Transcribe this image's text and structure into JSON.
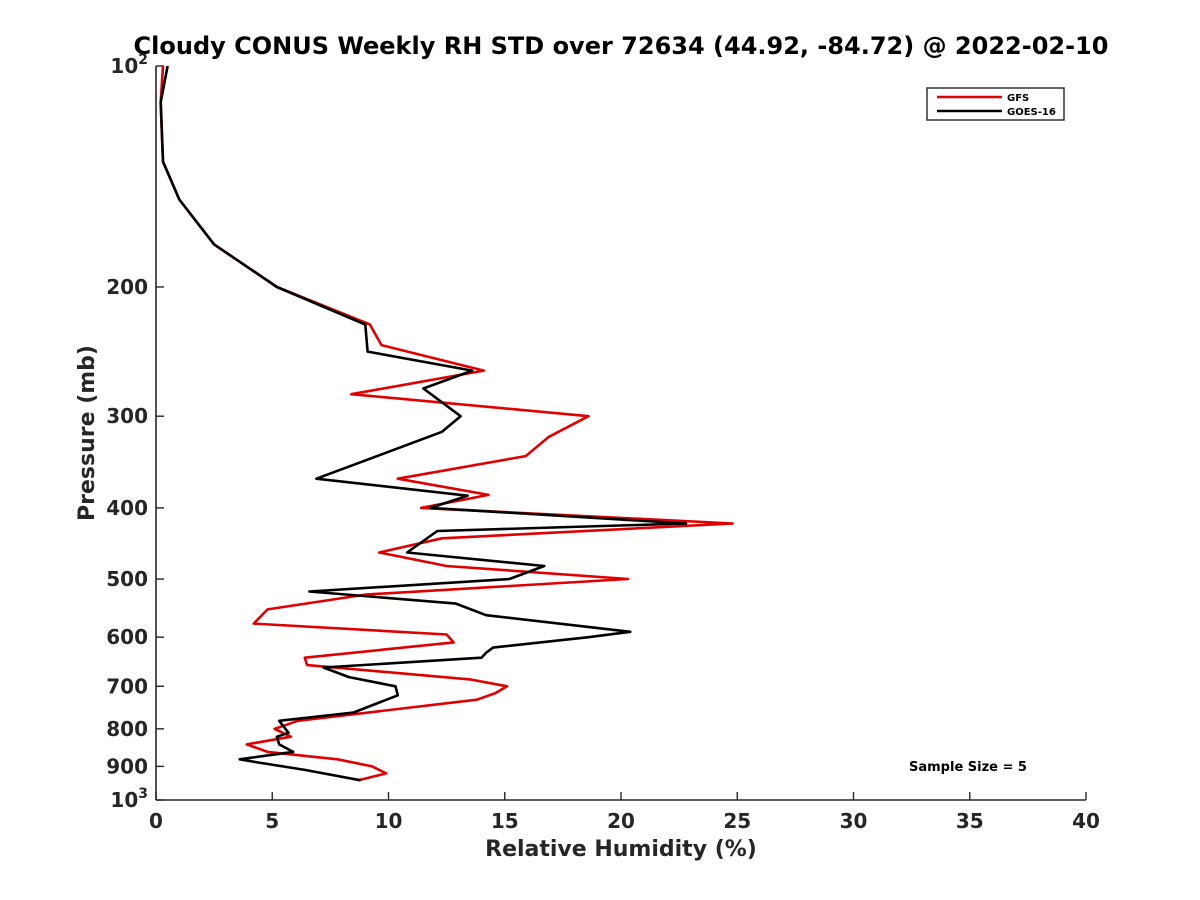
{
  "chart_data": {
    "type": "line",
    "title": "Cloudy CONUS Weekly RH STD over 72634 (44.92, -84.72) @ 2022-02-10",
    "xlabel": "Relative Humidity (%)",
    "ylabel": "Pressure (mb)",
    "xlim": [
      0,
      40
    ],
    "ylim": [
      100,
      1000
    ],
    "yscale": "log",
    "y_reversed": true,
    "grid": false,
    "legend_position": "top-right",
    "xticks": [
      {
        "value": 0,
        "label": "0"
      },
      {
        "value": 5,
        "label": "5"
      },
      {
        "value": 10,
        "label": "10"
      },
      {
        "value": 15,
        "label": "15"
      },
      {
        "value": 20,
        "label": "20"
      },
      {
        "value": 25,
        "label": "25"
      },
      {
        "value": 30,
        "label": "30"
      },
      {
        "value": 35,
        "label": "35"
      },
      {
        "value": 40,
        "label": "40"
      }
    ],
    "yticks": [
      {
        "value": 100,
        "base": "10",
        "exp": "2"
      },
      {
        "value": 200,
        "label": "200"
      },
      {
        "value": 300,
        "label": "300"
      },
      {
        "value": 400,
        "label": "400"
      },
      {
        "value": 500,
        "label": "500"
      },
      {
        "value": 600,
        "label": "600"
      },
      {
        "value": 700,
        "label": "700"
      },
      {
        "value": 800,
        "label": "800"
      },
      {
        "value": 900,
        "label": "900"
      },
      {
        "value": 1000,
        "base": "10",
        "exp": "3"
      }
    ],
    "annotation": "Sample Size = 5",
    "series": [
      {
        "name": "GFS",
        "color": "#e00000",
        "points": [
          [
            0.3,
            100
          ],
          [
            0.2,
            112
          ],
          [
            0.3,
            135
          ],
          [
            1.0,
            152
          ],
          [
            2.5,
            175
          ],
          [
            5.2,
            200
          ],
          [
            9.2,
            225
          ],
          [
            9.7,
            240
          ],
          [
            14.1,
            260
          ],
          [
            8.4,
            280
          ],
          [
            18.6,
            300
          ],
          [
            16.9,
            320
          ],
          [
            15.9,
            340
          ],
          [
            10.4,
            365
          ],
          [
            14.3,
            384
          ],
          [
            11.4,
            400
          ],
          [
            24.8,
            420
          ],
          [
            12.3,
            440
          ],
          [
            9.6,
            460
          ],
          [
            12.5,
            480
          ],
          [
            20.3,
            500
          ],
          [
            9.0,
            525
          ],
          [
            4.8,
            550
          ],
          [
            4.2,
            575
          ],
          [
            12.5,
            595
          ],
          [
            12.8,
            610
          ],
          [
            6.4,
            640
          ],
          [
            6.5,
            655
          ],
          [
            13.5,
            685
          ],
          [
            15.1,
            700
          ],
          [
            14.6,
            715
          ],
          [
            13.8,
            730
          ],
          [
            6.1,
            780
          ],
          [
            5.1,
            800
          ],
          [
            5.8,
            820
          ],
          [
            3.9,
            840
          ],
          [
            4.8,
            860
          ],
          [
            7.8,
            880
          ],
          [
            9.3,
            900
          ],
          [
            9.9,
            920
          ],
          [
            8.7,
            940
          ]
        ]
      },
      {
        "name": "GOES-16",
        "color": "#000000",
        "points": [
          [
            0.5,
            100
          ],
          [
            0.2,
            112
          ],
          [
            0.3,
            135
          ],
          [
            1.0,
            152
          ],
          [
            2.5,
            175
          ],
          [
            5.2,
            200
          ],
          [
            9.0,
            225
          ],
          [
            9.1,
            245
          ],
          [
            13.6,
            260
          ],
          [
            11.5,
            275
          ],
          [
            13.1,
            300
          ],
          [
            12.3,
            315
          ],
          [
            6.9,
            365
          ],
          [
            13.4,
            385
          ],
          [
            11.8,
            400
          ],
          [
            22.8,
            420
          ],
          [
            12.1,
            430
          ],
          [
            10.8,
            460
          ],
          [
            16.7,
            480
          ],
          [
            15.2,
            500
          ],
          [
            6.6,
            520
          ],
          [
            12.9,
            540
          ],
          [
            14.2,
            560
          ],
          [
            20.4,
            590
          ],
          [
            18.6,
            600
          ],
          [
            14.5,
            620
          ],
          [
            14.2,
            630
          ],
          [
            14.0,
            640
          ],
          [
            7.2,
            660
          ],
          [
            8.3,
            680
          ],
          [
            10.3,
            700
          ],
          [
            10.4,
            720
          ],
          [
            8.5,
            760
          ],
          [
            5.3,
            780
          ],
          [
            5.7,
            810
          ],
          [
            5.2,
            820
          ],
          [
            5.3,
            840
          ],
          [
            5.9,
            860
          ],
          [
            3.6,
            880
          ],
          [
            4.5,
            890
          ],
          [
            6.4,
            910
          ],
          [
            8.8,
            940
          ]
        ]
      }
    ]
  }
}
